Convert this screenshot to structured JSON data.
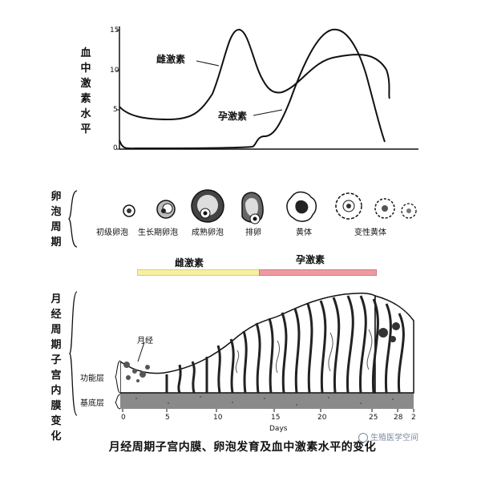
{
  "section1": {
    "y_label": "血中激素水平",
    "y_ticks": [
      "15",
      "10",
      "5",
      "0"
    ],
    "estrogen_label": "雌激素",
    "progesterone_label": "孕激素"
  },
  "section2": {
    "y_label": "卵泡周期",
    "stages": [
      "初级卵泡",
      "生长期卵泡",
      "成熟卵泡",
      "排卵",
      "黄体",
      "变性黄体"
    ]
  },
  "hormone_bar": {
    "estrogen": "雌激素",
    "progesterone": "孕激素",
    "colors": {
      "estrogen": "#f6f0a0",
      "progesterone": "#ef9aa0"
    }
  },
  "section3": {
    "y_label": "月经周期子宫内膜变化",
    "menstruation_label": "月经",
    "functional_layer": "功能层",
    "basal_layer": "基底层",
    "x_ticks": [
      "0",
      "5",
      "10",
      "15",
      "20",
      "25",
      "28",
      "2"
    ],
    "x_unit": "Days"
  },
  "caption": "月经周期子宫内膜、卵泡发育及血中激素水平的变化",
  "watermark": "生殖医学空间"
}
